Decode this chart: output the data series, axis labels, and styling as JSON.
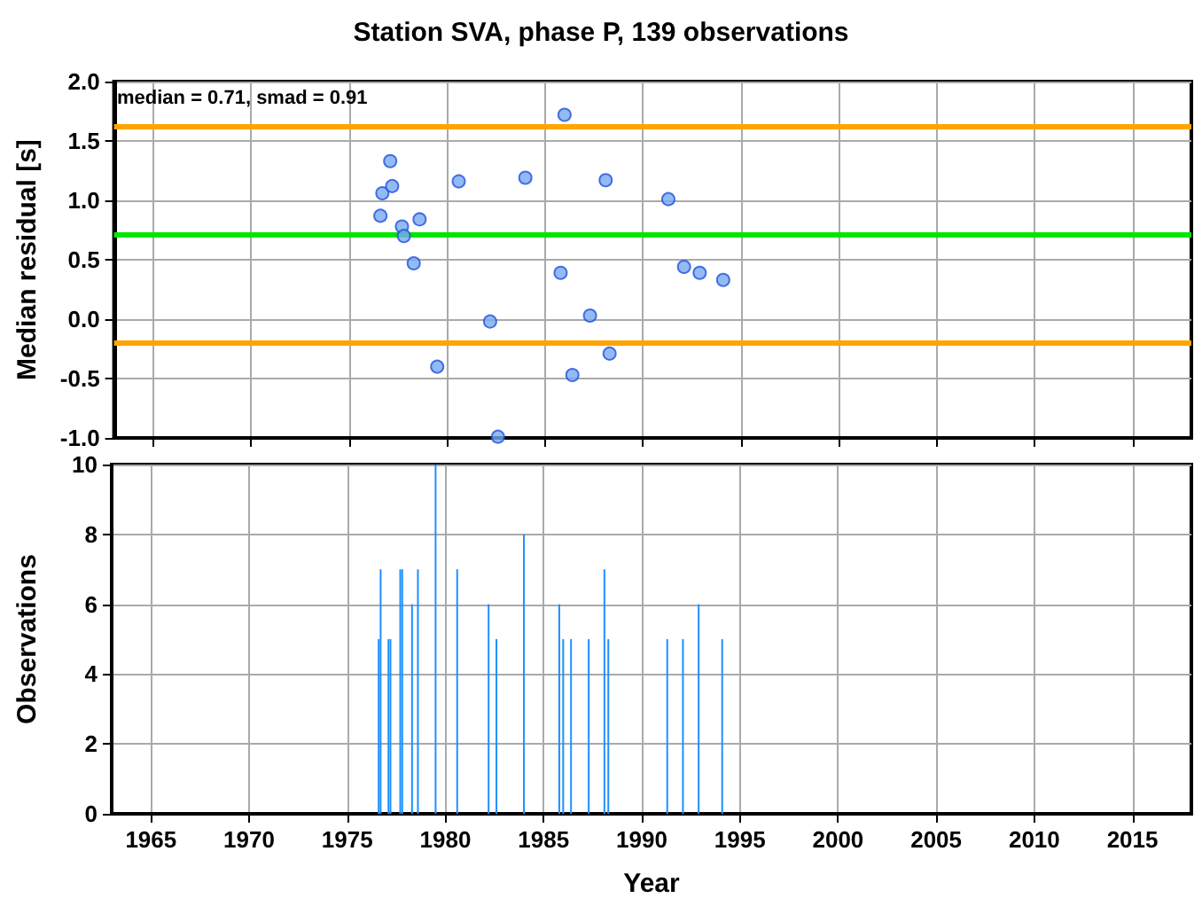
{
  "chart_data": [
    {
      "type": "scatter",
      "title": "Station SVA, phase P, 139 observations",
      "ylabel": "Median residual [s]",
      "annotations": [
        "median = 0.71, smad = 0.91"
      ],
      "x": [
        1976.6,
        1976.7,
        1977.1,
        1977.2,
        1977.7,
        1977.8,
        1978.3,
        1978.6,
        1979.5,
        1980.6,
        1982.2,
        1982.6,
        1984.0,
        1985.8,
        1986.0,
        1986.4,
        1987.3,
        1988.1,
        1988.3,
        1991.3,
        1992.1,
        1992.9,
        1994.1
      ],
      "series": [
        {
          "color": "#78aaf0",
          "values": [
            0.87,
            1.06,
            1.33,
            1.12,
            0.78,
            0.7,
            0.47,
            0.84,
            -0.4,
            1.16,
            -0.02,
            -0.99,
            1.19,
            0.39,
            1.72,
            -0.47,
            0.03,
            1.17,
            -0.29,
            1.01,
            0.44,
            0.39,
            0.33
          ]
        }
      ],
      "xlim": [
        1963,
        2018
      ],
      "xticks": [
        1965,
        1970,
        1975,
        1980,
        1985,
        1990,
        1995,
        2000,
        2005,
        2010,
        2015
      ],
      "ylim": [
        -1,
        2
      ],
      "yticks": [
        {
          "value": -1,
          "label": "-1.0"
        },
        -0.5,
        {
          "value": 0,
          "label": "0.0"
        },
        0.5,
        {
          "value": 1,
          "label": "1.0"
        },
        1.5,
        {
          "value": 2,
          "label": "2.0"
        }
      ],
      "ref_lines": [
        {
          "axis": "y",
          "value": 0.71,
          "color": "#00e600"
        },
        {
          "axis": "y",
          "value": 1.62,
          "color": "#ffa500"
        },
        {
          "axis": "y",
          "value": -0.2,
          "color": "#ffa500"
        }
      ],
      "tick_labels": "y",
      "grid": true,
      "marker": "circle"
    },
    {
      "type": "bar",
      "xlabel": "Year",
      "ylabel": "Observations",
      "x": [
        1976.6,
        1976.7,
        1977.1,
        1977.2,
        1977.7,
        1977.8,
        1978.3,
        1978.6,
        1979.5,
        1980.6,
        1982.2,
        1982.6,
        1984.0,
        1985.8,
        1986.0,
        1986.4,
        1987.3,
        1988.1,
        1988.3,
        1991.3,
        1992.1,
        1992.9,
        1994.1
      ],
      "series": [
        {
          "color": "#1e90ff",
          "values": [
            5,
            7,
            5,
            5,
            7,
            7,
            6,
            7,
            10,
            7,
            6,
            5,
            8,
            6,
            5,
            5,
            5,
            7,
            5,
            5,
            5,
            6,
            5
          ]
        }
      ],
      "xlim": [
        1963,
        2018
      ],
      "xticks": [
        1965,
        1970,
        1975,
        1980,
        1985,
        1990,
        1995,
        2000,
        2005,
        2010,
        2015
      ],
      "ylim": [
        0,
        10
      ],
      "yticks": [
        0,
        2,
        4,
        6,
        8,
        10
      ],
      "grid": true
    }
  ]
}
